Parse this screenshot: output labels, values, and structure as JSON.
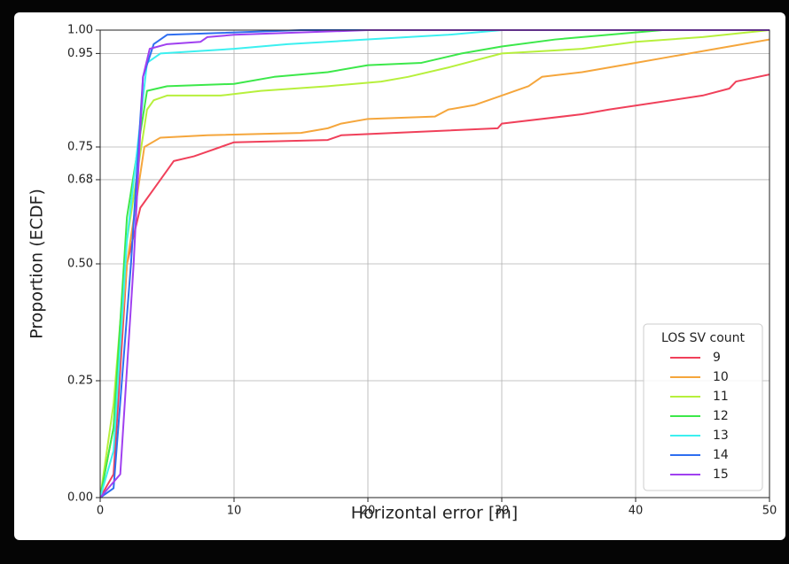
{
  "chart_data": {
    "type": "line",
    "xlabel": "Horizontal error [m]",
    "ylabel": "Proportion (ECDF)",
    "xlim": [
      0,
      50
    ],
    "ylim": [
      0,
      1
    ],
    "xticks": [
      0,
      10,
      20,
      30,
      40,
      50
    ],
    "yticks": [
      {
        "value": 0,
        "label": "0.00"
      },
      {
        "value": 0.25,
        "label": "0.25"
      },
      {
        "value": 0.5,
        "label": "0.50"
      },
      {
        "value": 0.68,
        "label": "0.68"
      },
      {
        "value": 0.75,
        "label": "0.75"
      },
      {
        "value": 0.95,
        "label": "0.95"
      },
      {
        "value": 1,
        "label": "1.00"
      }
    ],
    "grid": true,
    "legend_title": "LOS SV count",
    "legend_position": "lower right",
    "series": [
      {
        "name": "9",
        "color": "#f0405a",
        "x": [
          0,
          1,
          2,
          2.5,
          3,
          4,
          5,
          5.5,
          7,
          8,
          9,
          10,
          17,
          18,
          29.7,
          30,
          36,
          38,
          45,
          47,
          47.5,
          50
        ],
        "values": [
          0,
          0.05,
          0.5,
          0.56,
          0.62,
          0.66,
          0.7,
          0.72,
          0.73,
          0.74,
          0.75,
          0.76,
          0.765,
          0.775,
          0.79,
          0.8,
          0.82,
          0.83,
          0.86,
          0.875,
          0.89,
          0.905
        ]
      },
      {
        "name": "10",
        "color": "#f5a63c",
        "x": [
          0,
          1,
          2,
          3.3,
          4.5,
          8,
          15,
          17,
          18,
          20,
          25,
          26,
          28,
          30,
          32,
          33,
          36,
          40,
          42,
          46,
          50
        ],
        "values": [
          0,
          0.15,
          0.5,
          0.75,
          0.77,
          0.775,
          0.78,
          0.79,
          0.8,
          0.81,
          0.815,
          0.83,
          0.84,
          0.86,
          0.88,
          0.9,
          0.91,
          0.93,
          0.94,
          0.96,
          0.98
        ]
      },
      {
        "name": "11",
        "color": "#b7f03c",
        "x": [
          0,
          1,
          2,
          3.5,
          4,
          5,
          9,
          12,
          17,
          21,
          23,
          26,
          30,
          36,
          40,
          45,
          50
        ],
        "values": [
          0,
          0.2,
          0.55,
          0.83,
          0.85,
          0.86,
          0.86,
          0.87,
          0.88,
          0.89,
          0.9,
          0.92,
          0.95,
          0.96,
          0.975,
          0.985,
          1
        ]
      },
      {
        "name": "12",
        "color": "#3ce84a",
        "x": [
          0,
          1,
          2,
          3.5,
          5,
          10,
          13,
          17,
          20,
          24,
          27,
          30,
          34,
          38,
          42,
          50
        ],
        "values": [
          0,
          0.15,
          0.6,
          0.87,
          0.88,
          0.885,
          0.9,
          0.91,
          0.925,
          0.93,
          0.95,
          0.965,
          0.98,
          0.99,
          1,
          1
        ]
      },
      {
        "name": "13",
        "color": "#3cf0f0",
        "x": [
          0,
          1,
          2,
          3.5,
          4.5,
          10,
          14,
          20,
          26,
          30,
          50
        ],
        "values": [
          0,
          0.1,
          0.55,
          0.93,
          0.95,
          0.96,
          0.97,
          0.98,
          0.99,
          1,
          1
        ]
      },
      {
        "name": "14",
        "color": "#2e6ef0",
        "x": [
          0,
          1,
          2.3,
          3.2,
          4,
          5,
          15,
          50
        ],
        "values": [
          0,
          0.02,
          0.5,
          0.9,
          0.97,
          0.99,
          1,
          1
        ]
      },
      {
        "name": "15",
        "color": "#a040f0",
        "x": [
          0,
          1.5,
          2.5,
          3.2,
          3.7,
          5,
          7.5,
          8,
          10,
          20,
          50
        ],
        "values": [
          0,
          0.05,
          0.5,
          0.9,
          0.96,
          0.97,
          0.975,
          0.985,
          0.99,
          1,
          1
        ]
      }
    ]
  }
}
